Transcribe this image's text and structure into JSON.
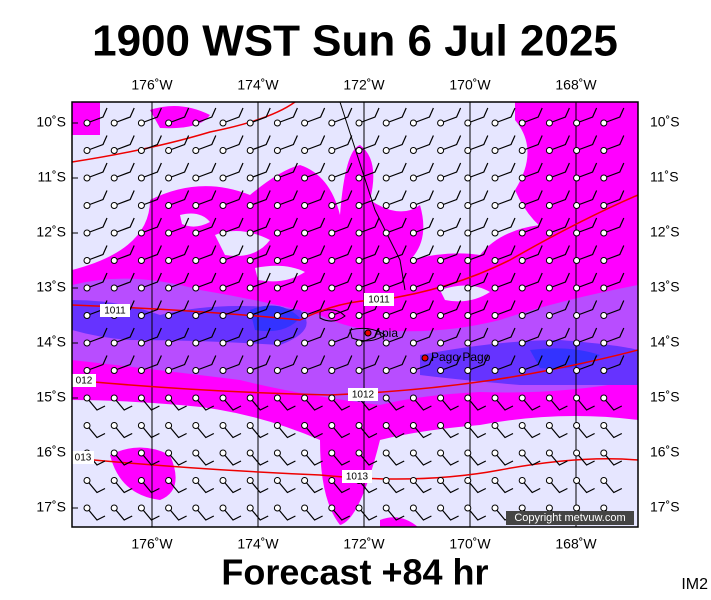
{
  "title": "1900 WST Sun 6 Jul 2025",
  "footer": "Forecast +84 hr",
  "image_id": "IM2",
  "copyright": "Copyright metvuw.com",
  "lon_labels": [
    "176˚W",
    "174˚W",
    "172˚W",
    "170˚W",
    "168˚W"
  ],
  "lat_labels": [
    "10˚S",
    "11˚S",
    "12˚S",
    "13˚S",
    "14˚S",
    "15˚S",
    "16˚S",
    "17˚S"
  ],
  "places": [
    "Apia",
    "Pago Pago"
  ],
  "isobar_labels": [
    "1011",
    "1011",
    "012",
    "1012",
    "013",
    "1013"
  ]
}
